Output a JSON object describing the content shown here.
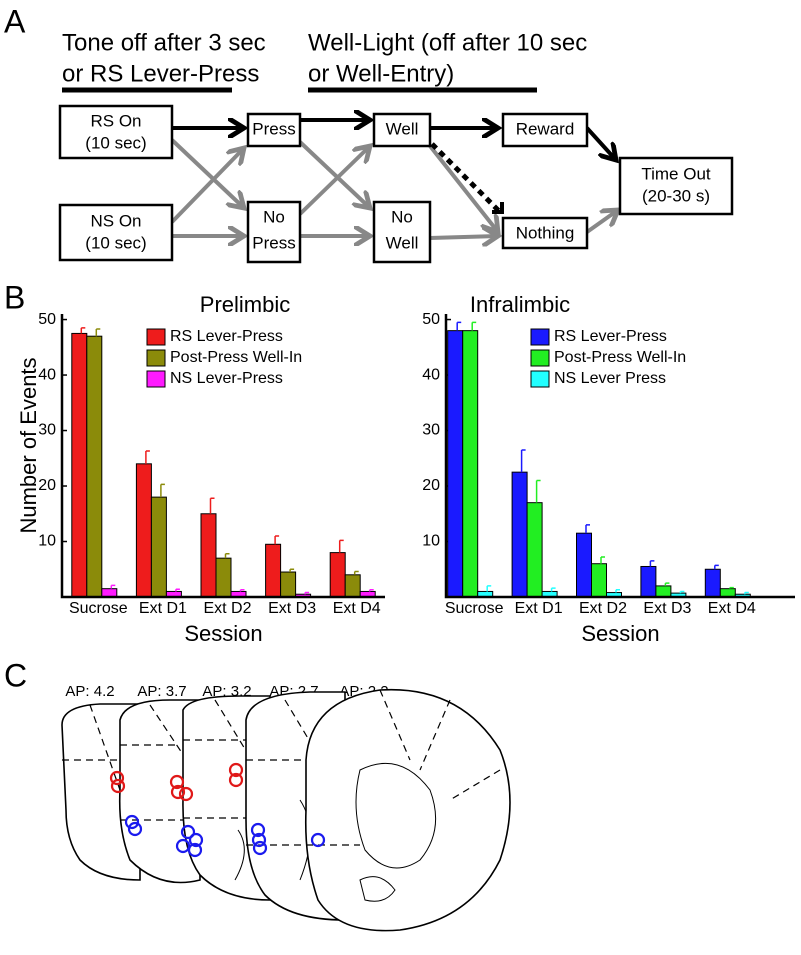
{
  "panel_labels": [
    "A",
    "B",
    "C"
  ],
  "diagram": {
    "headers": [
      {
        "lines": [
          "Tone off after 3 sec",
          "or RS Lever-Press"
        ]
      },
      {
        "lines": [
          "Well-Light (off after 10 sec",
          "or Well-Entry)"
        ]
      }
    ],
    "nodes": [
      {
        "lines": [
          "RS On",
          "(10 sec)"
        ]
      },
      {
        "lines": [
          "NS On",
          "(10 sec)"
        ]
      },
      {
        "lines": [
          "Press"
        ]
      },
      {
        "lines": [
          "No",
          "Press"
        ]
      },
      {
        "lines": [
          "Well"
        ]
      },
      {
        "lines": [
          "No",
          "Well"
        ]
      },
      {
        "lines": [
          "Reward"
        ]
      },
      {
        "lines": [
          "Nothing"
        ]
      },
      {
        "lines": [
          "Time Out",
          "(20-30 s)"
        ]
      }
    ]
  },
  "sections": {
    "labels": [
      "AP: 4.2",
      "AP: 3.7",
      "AP: 3.2",
      "AP: 2.7",
      "AP: 2.2"
    ]
  },
  "chart_data": [
    {
      "type": "bar",
      "title": "Prelimbic",
      "x_label": "Session",
      "y_label": "Number of Events",
      "categories": [
        "Sucrose",
        "Ext D1",
        "Ext D2",
        "Ext D3",
        "Ext D4"
      ],
      "series": [
        {
          "name": "RS Lever-Press",
          "color": "#ee1c1c",
          "values": [
            47.5,
            24,
            15,
            9.5,
            8
          ],
          "errors": [
            1,
            2.3,
            2.8,
            1.5,
            2.2
          ]
        },
        {
          "name": "Post-Press Well-In",
          "color": "#8b8b0a",
          "values": [
            47,
            18,
            7,
            4.5,
            4
          ],
          "errors": [
            1.3,
            2.3,
            0.8,
            0.5,
            0.6
          ]
        },
        {
          "name": "NS Lever-Press",
          "color": "#ff1aff",
          "values": [
            1.5,
            1,
            1,
            0.5,
            1
          ],
          "errors": [
            0.6,
            0.4,
            0.3,
            0.3,
            0.3
          ]
        }
      ],
      "ylim": [
        0,
        51
      ],
      "yticks": [
        10,
        20,
        30,
        40,
        50
      ]
    },
    {
      "type": "bar",
      "title": "Infralimbic",
      "x_label": "Session",
      "categories": [
        "Sucrose",
        "Ext D1",
        "Ext D2",
        "Ext D3",
        "Ext D4"
      ],
      "series": [
        {
          "name": "RS Lever-Press",
          "color": "#1a1aff",
          "values": [
            48,
            22.5,
            11.5,
            5.5,
            5
          ],
          "errors": [
            1.5,
            4,
            1.5,
            1,
            0.7
          ]
        },
        {
          "name": "Post-Press Well-In",
          "color": "#22ee22",
          "values": [
            48,
            17,
            6,
            2,
            1.5
          ],
          "errors": [
            1.5,
            4,
            1.2,
            0.5,
            0.2
          ]
        },
        {
          "name": "NS Lever Press",
          "color": "#22ffff",
          "values": [
            1,
            1,
            0.8,
            0.7,
            0.5
          ],
          "errors": [
            1,
            0.6,
            0.5,
            0.3,
            0.3
          ]
        }
      ],
      "ylim": [
        0,
        51
      ],
      "yticks": [
        10,
        20,
        30,
        40,
        50
      ]
    }
  ]
}
